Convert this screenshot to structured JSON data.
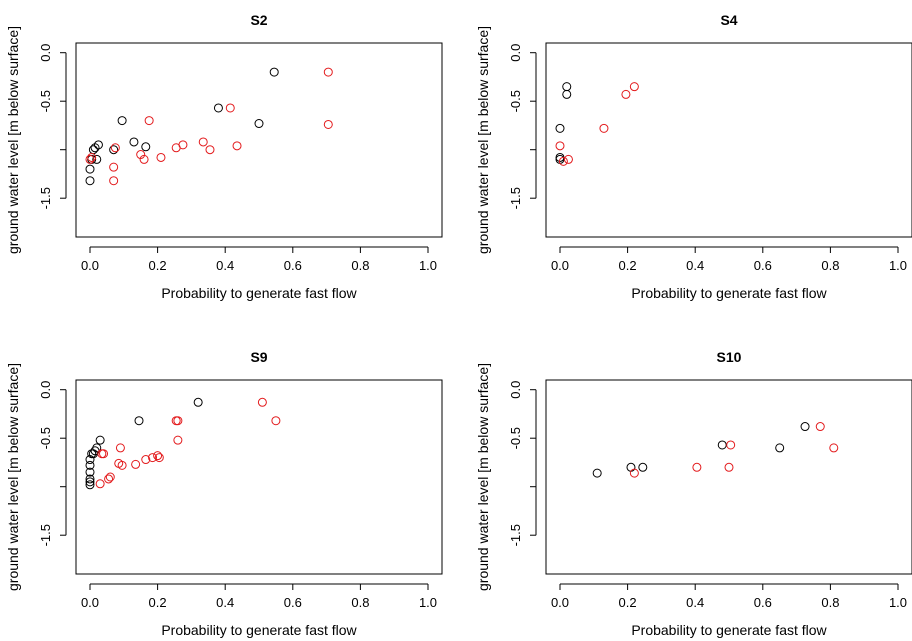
{
  "chart_data": [
    {
      "type": "scatter",
      "title": "S2",
      "xlabel": "Probability to generate fast flow",
      "ylabel": "ground water level [m below surface]",
      "xlim": [
        0,
        1
      ],
      "ylim": [
        -1.9,
        0.1
      ],
      "xticks": [
        "0.0",
        "0.2",
        "0.4",
        "0.6",
        "0.8",
        "1.0"
      ],
      "yticks": [
        "0.0",
        "-0.5",
        "-1.5"
      ],
      "grid": false,
      "series": [
        {
          "color": "#000000",
          "points": [
            [
              0.0,
              -1.32
            ],
            [
              0.0,
              -1.2
            ],
            [
              0.005,
              -1.1
            ],
            [
              0.01,
              -1.0
            ],
            [
              0.015,
              -0.98
            ],
            [
              0.02,
              -1.1
            ],
            [
              0.025,
              -0.95
            ],
            [
              0.07,
              -1.0
            ],
            [
              0.095,
              -0.7
            ],
            [
              0.13,
              -0.92
            ],
            [
              0.165,
              -0.97
            ],
            [
              0.38,
              -0.57
            ],
            [
              0.5,
              -0.73
            ],
            [
              0.545,
              -0.2
            ]
          ]
        },
        {
          "color": "#e31a1c",
          "points": [
            [
              0.0,
              -1.1
            ],
            [
              0.005,
              -1.08
            ],
            [
              0.07,
              -1.18
            ],
            [
              0.07,
              -1.32
            ],
            [
              0.075,
              -0.98
            ],
            [
              0.15,
              -1.05
            ],
            [
              0.16,
              -1.1
            ],
            [
              0.175,
              -0.7
            ],
            [
              0.21,
              -1.08
            ],
            [
              0.255,
              -0.98
            ],
            [
              0.275,
              -0.95
            ],
            [
              0.335,
              -0.92
            ],
            [
              0.355,
              -1.0
            ],
            [
              0.415,
              -0.57
            ],
            [
              0.435,
              -0.96
            ],
            [
              0.705,
              -0.2
            ],
            [
              0.705,
              -0.74
            ]
          ]
        }
      ]
    },
    {
      "type": "scatter",
      "title": "S4",
      "xlabel": "Probability to generate fast flow",
      "ylabel": "ground water level [m below surface]",
      "xlim": [
        0,
        1
      ],
      "ylim": [
        -1.9,
        0.1
      ],
      "xticks": [
        "0.0",
        "0.2",
        "0.4",
        "0.6",
        "0.8",
        "1.0"
      ],
      "yticks": [
        "0.0",
        "-0.5",
        "-1.5"
      ],
      "grid": false,
      "series": [
        {
          "color": "#000000",
          "points": [
            [
              0.0,
              -0.78
            ],
            [
              0.0,
              -1.08
            ],
            [
              0.0,
              -1.1
            ],
            [
              0.02,
              -0.35
            ],
            [
              0.02,
              -0.43
            ]
          ]
        },
        {
          "color": "#e31a1c",
          "points": [
            [
              0.0,
              -0.96
            ],
            [
              0.01,
              -1.12
            ],
            [
              0.025,
              -1.1
            ],
            [
              0.13,
              -0.78
            ],
            [
              0.195,
              -0.43
            ],
            [
              0.22,
              -0.35
            ]
          ]
        }
      ]
    },
    {
      "type": "scatter",
      "title": "S9",
      "xlabel": "Probability to generate fast flow",
      "ylabel": "ground water level [m below surface]",
      "xlim": [
        0,
        1
      ],
      "ylim": [
        -1.9,
        0.1
      ],
      "xticks": [
        "0.0",
        "0.2",
        "0.4",
        "0.6",
        "0.8",
        "1.0"
      ],
      "yticks": [
        "0.0",
        "-0.5",
        "-1.5"
      ],
      "grid": false,
      "series": [
        {
          "color": "#000000",
          "points": [
            [
              0.0,
              -0.72
            ],
            [
              0.0,
              -0.78
            ],
            [
              0.0,
              -0.85
            ],
            [
              0.0,
              -0.92
            ],
            [
              0.0,
              -0.95
            ],
            [
              0.0,
              -0.98
            ],
            [
              0.005,
              -0.66
            ],
            [
              0.01,
              -0.66
            ],
            [
              0.015,
              -0.63
            ],
            [
              0.02,
              -0.6
            ],
            [
              0.03,
              -0.52
            ],
            [
              0.145,
              -0.32
            ],
            [
              0.32,
              -0.13
            ]
          ]
        },
        {
          "color": "#e31a1c",
          "points": [
            [
              0.03,
              -0.97
            ],
            [
              0.035,
              -0.66
            ],
            [
              0.04,
              -0.66
            ],
            [
              0.055,
              -0.92
            ],
            [
              0.06,
              -0.9
            ],
            [
              0.085,
              -0.76
            ],
            [
              0.09,
              -0.6
            ],
            [
              0.095,
              -0.78
            ],
            [
              0.135,
              -0.77
            ],
            [
              0.165,
              -0.72
            ],
            [
              0.185,
              -0.7
            ],
            [
              0.2,
              -0.68
            ],
            [
              0.205,
              -0.7
            ],
            [
              0.255,
              -0.32
            ],
            [
              0.26,
              -0.32
            ],
            [
              0.26,
              -0.52
            ],
            [
              0.51,
              -0.13
            ],
            [
              0.55,
              -0.32
            ]
          ]
        }
      ]
    },
    {
      "type": "scatter",
      "title": "S10",
      "xlabel": "Probability to generate fast flow",
      "ylabel": "ground water level [m below surface]",
      "xlim": [
        0,
        1
      ],
      "ylim": [
        -1.9,
        0.1
      ],
      "xticks": [
        "0.0",
        "0.2",
        "0.4",
        "0.6",
        "0.8",
        "1.0"
      ],
      "yticks": [
        "0.0",
        "-0.5",
        "-1.5"
      ],
      "grid": false,
      "series": [
        {
          "color": "#000000",
          "points": [
            [
              0.11,
              -0.86
            ],
            [
              0.21,
              -0.8
            ],
            [
              0.245,
              -0.8
            ],
            [
              0.48,
              -0.57
            ],
            [
              0.65,
              -0.6
            ],
            [
              0.725,
              -0.38
            ]
          ]
        },
        {
          "color": "#e31a1c",
          "points": [
            [
              0.22,
              -0.86
            ],
            [
              0.405,
              -0.8
            ],
            [
              0.5,
              -0.8
            ],
            [
              0.505,
              -0.57
            ],
            [
              0.77,
              -0.38
            ],
            [
              0.81,
              -0.6
            ]
          ]
        }
      ]
    }
  ]
}
